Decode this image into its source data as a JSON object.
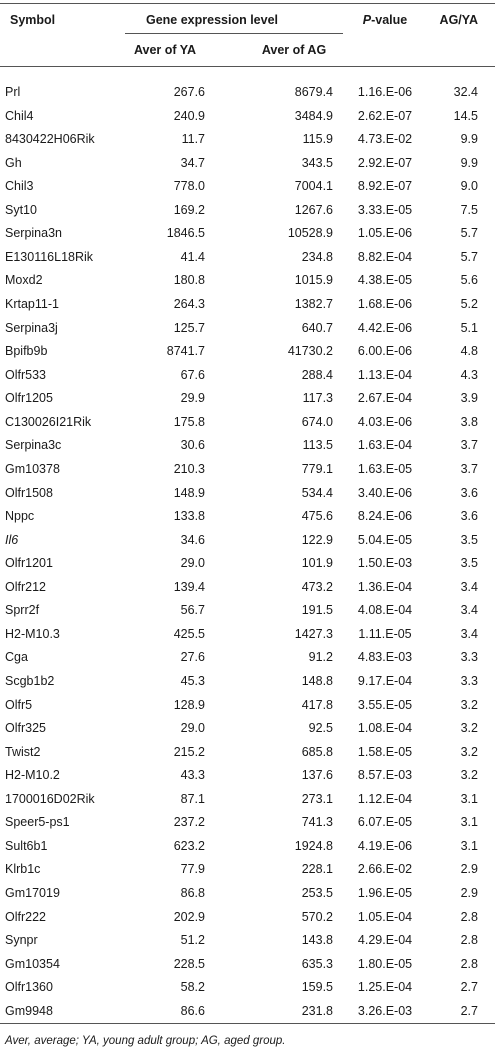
{
  "table": {
    "header": {
      "symbol": "Symbol",
      "group": "Gene expression level",
      "aver_ya": "Aver of YA",
      "aver_ag": "Aver of AG",
      "p_value": {
        "italic": "P",
        "rest": "-value"
      },
      "ratio": "AG/YA"
    },
    "rows": [
      {
        "symbol": "Prl",
        "aver_ya": "267.6",
        "aver_ag": "8679.4",
        "p_value": "1.16.E-06",
        "ratio": "32.4"
      },
      {
        "symbol": "Chil4",
        "aver_ya": "240.9",
        "aver_ag": "3484.9",
        "p_value": "2.62.E-07",
        "ratio": "14.5"
      },
      {
        "symbol": "8430422H06Rik",
        "aver_ya": "11.7",
        "aver_ag": "115.9",
        "p_value": "4.73.E-02",
        "ratio": "9.9"
      },
      {
        "symbol": "Gh",
        "aver_ya": "34.7",
        "aver_ag": "343.5",
        "p_value": "2.92.E-07",
        "ratio": "9.9"
      },
      {
        "symbol": "Chil3",
        "aver_ya": "778.0",
        "aver_ag": "7004.1",
        "p_value": "8.92.E-07",
        "ratio": "9.0"
      },
      {
        "symbol": "Syt10",
        "aver_ya": "169.2",
        "aver_ag": "1267.6",
        "p_value": "3.33.E-05",
        "ratio": "7.5"
      },
      {
        "symbol": "Serpina3n",
        "aver_ya": "1846.5",
        "aver_ag": "10528.9",
        "p_value": "1.05.E-06",
        "ratio": "5.7"
      },
      {
        "symbol": "E130116L18Rik",
        "aver_ya": "41.4",
        "aver_ag": "234.8",
        "p_value": "8.82.E-04",
        "ratio": "5.7"
      },
      {
        "symbol": "Moxd2",
        "aver_ya": "180.8",
        "aver_ag": "1015.9",
        "p_value": "4.38.E-05",
        "ratio": "5.6"
      },
      {
        "symbol": "Krtap11-1",
        "aver_ya": "264.3",
        "aver_ag": "1382.7",
        "p_value": "1.68.E-06",
        "ratio": "5.2"
      },
      {
        "symbol": "Serpina3j",
        "aver_ya": "125.7",
        "aver_ag": "640.7",
        "p_value": "4.42.E-06",
        "ratio": "5.1"
      },
      {
        "symbol": "Bpifb9b",
        "aver_ya": "8741.7",
        "aver_ag": "41730.2",
        "p_value": "6.00.E-06",
        "ratio": "4.8"
      },
      {
        "symbol": "Olfr533",
        "aver_ya": "67.6",
        "aver_ag": "288.4",
        "p_value": "1.13.E-04",
        "ratio": "4.3"
      },
      {
        "symbol": "Olfr1205",
        "aver_ya": "29.9",
        "aver_ag": "117.3",
        "p_value": "2.67.E-04",
        "ratio": "3.9"
      },
      {
        "symbol": "C130026I21Rik",
        "aver_ya": "175.8",
        "aver_ag": "674.0",
        "p_value": "4.03.E-06",
        "ratio": "3.8"
      },
      {
        "symbol": "Serpina3c",
        "aver_ya": "30.6",
        "aver_ag": "113.5",
        "p_value": "1.63.E-04",
        "ratio": "3.7"
      },
      {
        "symbol": "Gm10378",
        "aver_ya": "210.3",
        "aver_ag": "779.1",
        "p_value": "1.63.E-05",
        "ratio": "3.7"
      },
      {
        "symbol": "Olfr1508",
        "aver_ya": "148.9",
        "aver_ag": "534.4",
        "p_value": "3.40.E-06",
        "ratio": "3.6"
      },
      {
        "symbol": "Nppc",
        "aver_ya": "133.8",
        "aver_ag": "475.6",
        "p_value": "8.24.E-06",
        "ratio": "3.6"
      },
      {
        "symbol": "Il6",
        "italic": true,
        "aver_ya": "34.6",
        "aver_ag": "122.9",
        "p_value": "5.04.E-05",
        "ratio": "3.5"
      },
      {
        "symbol": "Olfr1201",
        "aver_ya": "29.0",
        "aver_ag": "101.9",
        "p_value": "1.50.E-03",
        "ratio": "3.5"
      },
      {
        "symbol": "Olfr212",
        "aver_ya": "139.4",
        "aver_ag": "473.2",
        "p_value": "1.36.E-04",
        "ratio": "3.4"
      },
      {
        "symbol": "Sprr2f",
        "aver_ya": "56.7",
        "aver_ag": "191.5",
        "p_value": "4.08.E-04",
        "ratio": "3.4"
      },
      {
        "symbol": "H2-M10.3",
        "aver_ya": "425.5",
        "aver_ag": "1427.3",
        "p_value": "1.11.E-05",
        "ratio": "3.4"
      },
      {
        "symbol": "Cga",
        "aver_ya": "27.6",
        "aver_ag": "91.2",
        "p_value": "4.83.E-03",
        "ratio": "3.3"
      },
      {
        "symbol": "Scgb1b2",
        "aver_ya": "45.3",
        "aver_ag": "148.8",
        "p_value": "9.17.E-04",
        "ratio": "3.3"
      },
      {
        "symbol": "Olfr5",
        "aver_ya": "128.9",
        "aver_ag": "417.8",
        "p_value": "3.55.E-05",
        "ratio": "3.2"
      },
      {
        "symbol": "Olfr325",
        "aver_ya": "29.0",
        "aver_ag": "92.5",
        "p_value": "1.08.E-04",
        "ratio": "3.2"
      },
      {
        "symbol": "Twist2",
        "aver_ya": "215.2",
        "aver_ag": "685.8",
        "p_value": "1.58.E-05",
        "ratio": "3.2"
      },
      {
        "symbol": "H2-M10.2",
        "aver_ya": "43.3",
        "aver_ag": "137.6",
        "p_value": "8.57.E-03",
        "ratio": "3.2"
      },
      {
        "symbol": "1700016D02Rik",
        "aver_ya": "87.1",
        "aver_ag": "273.1",
        "p_value": "1.12.E-04",
        "ratio": "3.1"
      },
      {
        "symbol": "Speer5-ps1",
        "aver_ya": "237.2",
        "aver_ag": "741.3",
        "p_value": "6.07.E-05",
        "ratio": "3.1"
      },
      {
        "symbol": "Sult6b1",
        "aver_ya": "623.2",
        "aver_ag": "1924.8",
        "p_value": "4.19.E-06",
        "ratio": "3.1"
      },
      {
        "symbol": "Klrb1c",
        "aver_ya": "77.9",
        "aver_ag": "228.1",
        "p_value": "2.66.E-02",
        "ratio": "2.9"
      },
      {
        "symbol": "Gm17019",
        "aver_ya": "86.8",
        "aver_ag": "253.5",
        "p_value": "1.96.E-05",
        "ratio": "2.9"
      },
      {
        "symbol": "Olfr222",
        "aver_ya": "202.9",
        "aver_ag": "570.2",
        "p_value": "1.05.E-04",
        "ratio": "2.8"
      },
      {
        "symbol": "Synpr",
        "aver_ya": "51.2",
        "aver_ag": "143.8",
        "p_value": "4.29.E-04",
        "ratio": "2.8"
      },
      {
        "symbol": "Gm10354",
        "aver_ya": "228.5",
        "aver_ag": "635.3",
        "p_value": "1.80.E-05",
        "ratio": "2.8"
      },
      {
        "symbol": "Olfr1360",
        "aver_ya": "58.2",
        "aver_ag": "159.5",
        "p_value": "1.25.E-04",
        "ratio": "2.7"
      },
      {
        "symbol": "Gm9948",
        "aver_ya": "86.6",
        "aver_ag": "231.8",
        "p_value": "3.26.E-03",
        "ratio": "2.7"
      }
    ],
    "footnote": "Aver, average; YA, young adult group; AG, aged group."
  }
}
